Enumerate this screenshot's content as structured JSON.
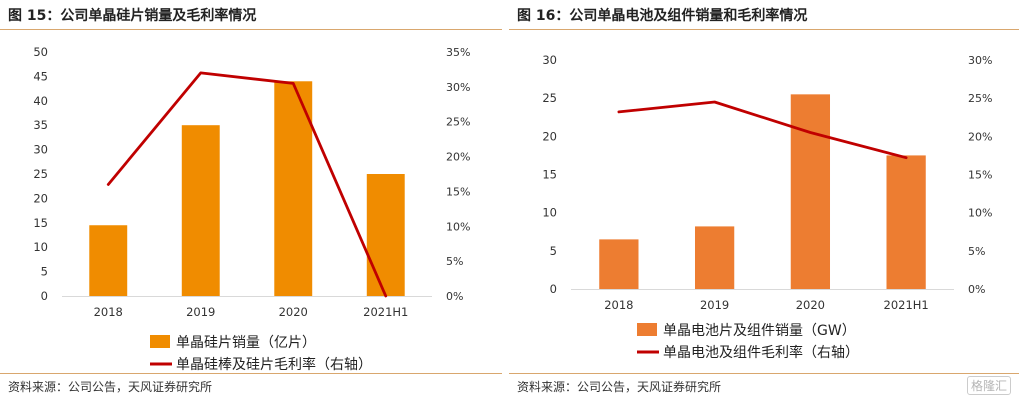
{
  "charts": {
    "left": {
      "title": "图 15：公司单晶硅片销量及毛利率情况",
      "source": "资料来源：公司公告，天风证券研究所"
    },
    "right": {
      "title": "图 16：公司单晶电池及组件销量和毛利率情况",
      "source": "资料来源：公司公告，天风证券研究所"
    }
  },
  "watermark": "格隆汇",
  "chart_data": [
    {
      "type": "bar",
      "categories": [
        "2018",
        "2019",
        "2020",
        "2021H1"
      ],
      "series": [
        {
          "name": "单晶硅片销量（亿片）",
          "kind": "bar",
          "axis": "left",
          "color": "#f08c00",
          "values": [
            14.5,
            35,
            44,
            25
          ]
        },
        {
          "name": "单晶硅棒及硅片毛利率（右轴）",
          "kind": "line",
          "axis": "right",
          "color": "#c00000",
          "values": [
            0.16,
            0.32,
            0.305,
            0.0
          ]
        }
      ],
      "ylim": [
        0,
        50
      ],
      "yticks": [
        "0",
        "5",
        "10",
        "15",
        "20",
        "25",
        "30",
        "35",
        "40",
        "45",
        "50"
      ],
      "y2lim": [
        0,
        0.35
      ],
      "y2ticks": [
        "0%",
        "5%",
        "10%",
        "15%",
        "20%",
        "25%",
        "30%",
        "35%"
      ],
      "grid": false,
      "legend": "bottom"
    },
    {
      "type": "bar",
      "categories": [
        "2018",
        "2019",
        "2020",
        "2021H1"
      ],
      "series": [
        {
          "name": "单晶电池片及组件销量（GW）",
          "kind": "bar",
          "axis": "left",
          "color": "#ed7d31",
          "values": [
            6.5,
            8.2,
            25.5,
            17.5
          ]
        },
        {
          "name": "单晶电池及组件毛利率（右轴）",
          "kind": "line",
          "axis": "right",
          "color": "#c00000",
          "values": [
            0.232,
            0.245,
            0.205,
            0.172
          ]
        }
      ],
      "ylim": [
        0,
        30
      ],
      "yticks": [
        "0",
        "5",
        "10",
        "15",
        "20",
        "25",
        "30"
      ],
      "y2lim": [
        0,
        0.3
      ],
      "y2ticks": [
        "0%",
        "5%",
        "10%",
        "15%",
        "20%",
        "25%",
        "30%"
      ],
      "grid": false,
      "legend": "bottom"
    }
  ]
}
